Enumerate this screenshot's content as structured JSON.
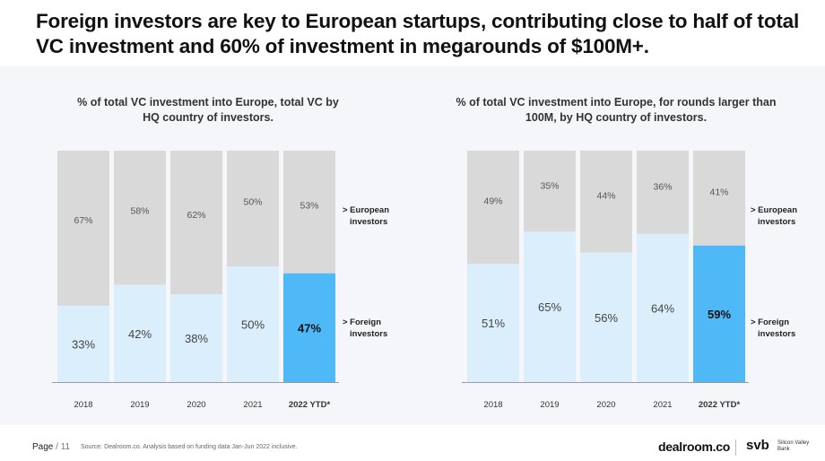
{
  "headline": "Foreign investors are key to European startups, contributing close to half of total VC investment and 60% of investment in megarounds of $100M+.",
  "colors": {
    "european": "#d9d9d9",
    "foreign": "#dbeefc",
    "foreign_highlight": "#4fb9f7",
    "axis": "#9a9a9a"
  },
  "chart_data": [
    {
      "type": "bar",
      "stacked": true,
      "percent": true,
      "title": "% of total VC investment into Europe, total VC by HQ country of investors.",
      "categories": [
        "2018",
        "2019",
        "2020",
        "2021",
        "2022 YTD*"
      ],
      "series": [
        {
          "name": "> Foreign investors",
          "values": [
            33,
            42,
            38,
            50,
            47
          ]
        },
        {
          "name": "> European investors",
          "values": [
            67,
            58,
            62,
            50,
            53
          ]
        }
      ],
      "ylim": [
        0,
        100
      ],
      "legend": "right",
      "highlight_category": "2022 YTD*"
    },
    {
      "type": "bar",
      "stacked": true,
      "percent": true,
      "title": "% of total VC investment into Europe, for rounds larger than 100M, by HQ country of investors.",
      "categories": [
        "2018",
        "2019",
        "2020",
        "2021",
        "2022 YTD*"
      ],
      "series": [
        {
          "name": "> Foreign investors",
          "values": [
            51,
            65,
            56,
            64,
            59
          ]
        },
        {
          "name": "> European investors",
          "values": [
            49,
            35,
            44,
            36,
            41
          ]
        }
      ],
      "ylim": [
        0,
        100
      ],
      "legend": "right",
      "highlight_category": "2022 YTD*"
    }
  ],
  "footer": {
    "page_label": "Page",
    "page_number": "/ 11",
    "source": "Source: Dealroom.co. Analysis based on funding data Jan-Jun 2022 inclusive.",
    "logo_dealroom": "dealroom.co",
    "logo_svb": "svb",
    "logo_svb_sub": "Silicon Valley Bank"
  }
}
